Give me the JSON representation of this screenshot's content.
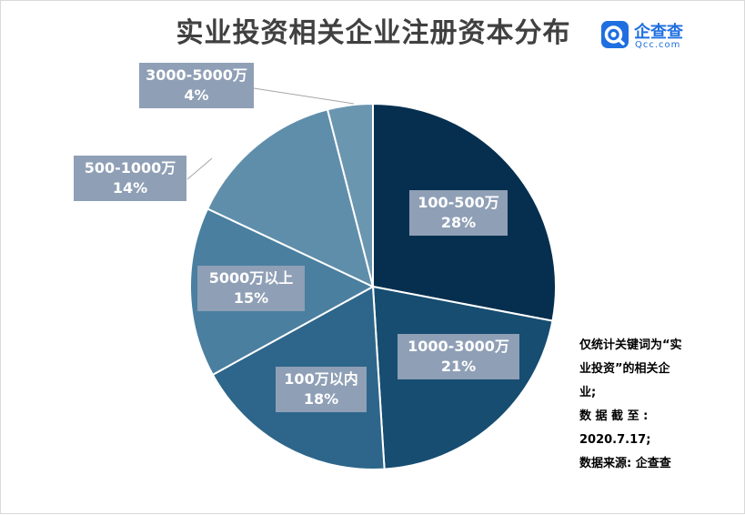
{
  "title": "实业投资相关企业注册资本分布",
  "logo": {
    "name": "企查查",
    "domain": "Qcc.com"
  },
  "note_lines": [
    "仅统计关键词为“实",
    "业投资”的相关企",
    "业;",
    "数 据 截 至 :",
    "2020.7.17;",
    "数据来源: 企查查"
  ],
  "colors": [
    "#062f4f",
    "#164d71",
    "#2d668a",
    "#4a7fa0",
    "#5f8eab",
    "#6b96b0"
  ],
  "chart_data": {
    "type": "pie",
    "slices": [
      {
        "label": "100-500万",
        "value": 28,
        "percent_label": "28%"
      },
      {
        "label": "1000-3000万",
        "value": 21,
        "percent_label": "21%"
      },
      {
        "label": "100万以内",
        "value": 18,
        "percent_label": "18%"
      },
      {
        "label": "5000万以上",
        "value": 15,
        "percent_label": "15%"
      },
      {
        "label": "500-1000万",
        "value": 14,
        "percent_label": "14%"
      },
      {
        "label": "3000-5000万",
        "value": 4,
        "percent_label": "4%"
      }
    ],
    "start_angle_deg": 0,
    "direction": "clockwise"
  }
}
